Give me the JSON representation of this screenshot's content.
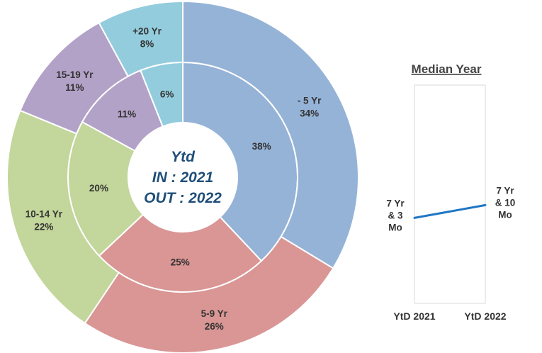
{
  "colors": {
    "lt5": "#95b3d7",
    "y5_9": "#d99694",
    "y10_14": "#c3d69b",
    "y15_19": "#b3a2c7",
    "y20plus": "#93cddd",
    "trend_line": "#1f77c4"
  },
  "chart_data": [
    {
      "type": "pie",
      "subtype": "double-donut",
      "center_text": [
        "Ytd",
        "IN : 2021",
        "OUT : 2022"
      ],
      "categories": [
        "- 5 Yr",
        "5-9 Yr",
        "10-14 Yr",
        "15-19 Yr",
        "+20 Yr"
      ],
      "color_keys": [
        "lt5",
        "y5_9",
        "y10_14",
        "y15_19",
        "y20plus"
      ],
      "series": [
        {
          "ring": "inner",
          "values": [
            38,
            25,
            20,
            11,
            6
          ]
        },
        {
          "ring": "outer",
          "values": [
            34,
            26,
            22,
            11,
            8
          ]
        }
      ],
      "value_suffix": "%"
    },
    {
      "type": "line",
      "title": "Median Year",
      "categories": [
        "YtD 2021",
        "YtD 2022"
      ],
      "values_months": [
        87,
        94
      ],
      "point_labels": [
        [
          "7 Yr",
          "& 3",
          "Mo"
        ],
        [
          "7 Yr",
          "& 10",
          "Mo"
        ]
      ],
      "grid": false
    }
  ]
}
